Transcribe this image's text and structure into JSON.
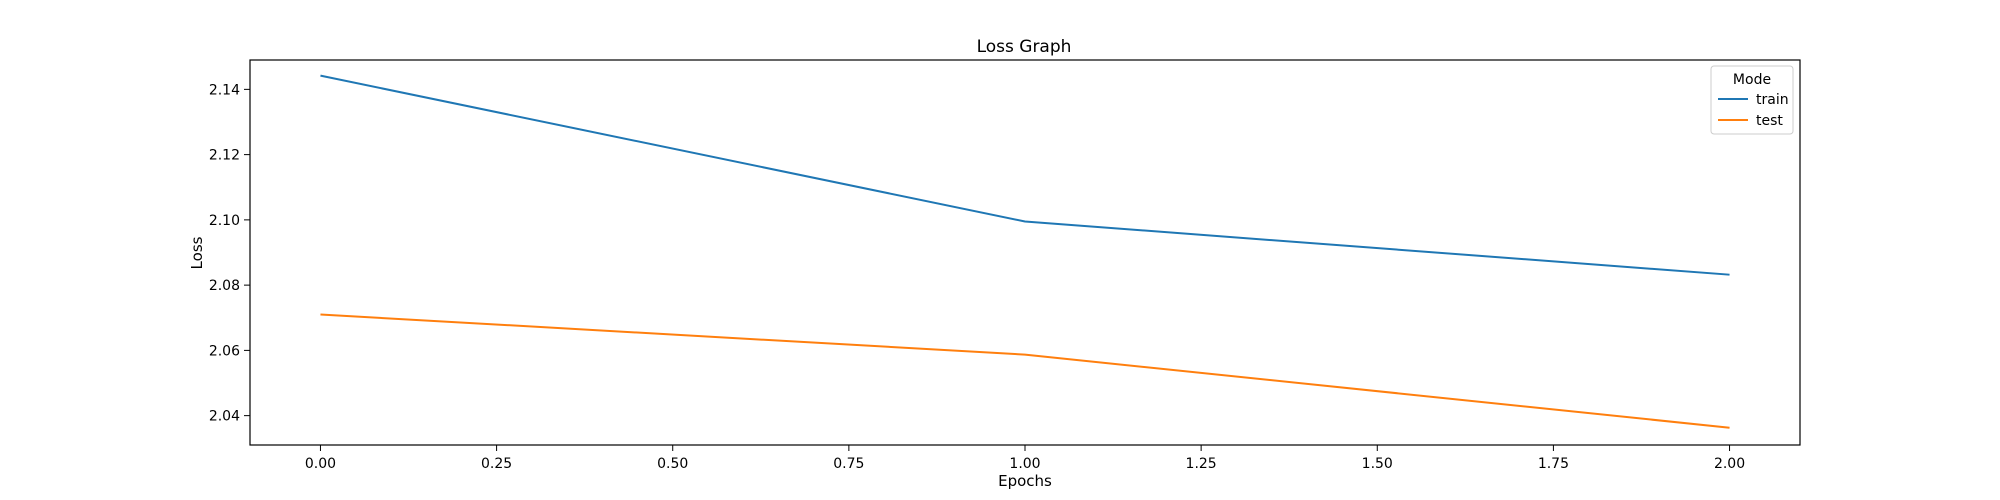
{
  "chart_data": {
    "type": "line",
    "title": "Loss Graph",
    "xlabel": "Epochs",
    "ylabel": "Loss",
    "xlim": [
      -0.1,
      2.1
    ],
    "ylim": [
      2.031,
      2.149
    ],
    "xticks": [
      0.0,
      0.25,
      0.5,
      0.75,
      1.0,
      1.25,
      1.5,
      1.75,
      2.0
    ],
    "xtick_labels": [
      "0.00",
      "0.25",
      "0.50",
      "0.75",
      "1.00",
      "1.25",
      "1.50",
      "1.75",
      "2.00"
    ],
    "yticks": [
      2.04,
      2.06,
      2.08,
      2.1,
      2.12,
      2.14
    ],
    "ytick_labels": [
      "2.04",
      "2.06",
      "2.08",
      "2.10",
      "2.12",
      "2.14"
    ],
    "grid": false,
    "legend": {
      "title": "Mode",
      "placement": "top-right"
    },
    "x": [
      0,
      1,
      2
    ],
    "series": [
      {
        "name": "train",
        "color": "#1f77b4",
        "values": [
          2.1442,
          2.0995,
          2.0832
        ]
      },
      {
        "name": "test",
        "color": "#ff7f0e",
        "values": [
          2.071,
          2.0587,
          2.0363
        ]
      }
    ]
  }
}
